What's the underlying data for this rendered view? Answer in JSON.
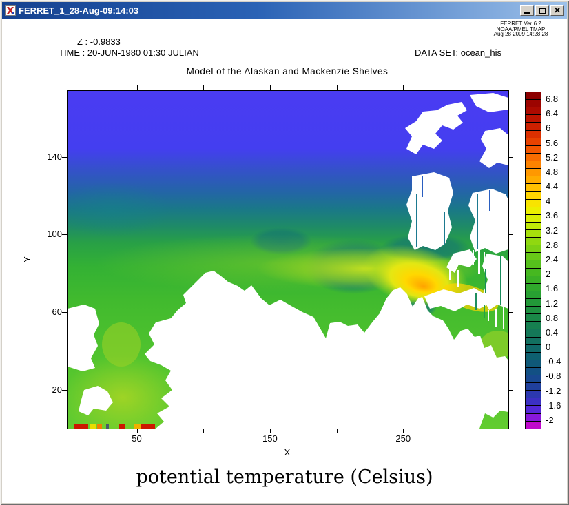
{
  "window": {
    "title": "FERRET_1_28-Aug-09:14:03"
  },
  "stamp": {
    "line1": "FERRET Ver 6.2",
    "line2": "NOAA/PMEL TMAP",
    "line3": "Aug 28 2009 14:28:28"
  },
  "header": {
    "z_label": "Z : -0.9833",
    "time_label": "TIME : 20-JUN-1980 01:30 JULIAN",
    "dataset_label": "DATA SET: ocean_his",
    "plot_title": "Model of the Alaskan and Mackenzie Shelves"
  },
  "caption": "potential temperature (Celsius)",
  "colors": {
    "titlebar_left": "#15418f",
    "titlebar_right": "#9dc1ea",
    "window_chrome": "#d4d0c8",
    "land_mask": "#ffffff",
    "ocean_cold_blue": "#4a3cf2",
    "shelf_green": "#3cb42e",
    "plume_orange": "#ffa200"
  },
  "chart_data": {
    "type": "heatmap",
    "title": "Model of the Alaskan and Mackenzie Shelves",
    "xlabel": "X",
    "ylabel": "Y",
    "x_range": [
      -2,
      329
    ],
    "y_range": [
      0,
      174
    ],
    "x_ticks_all": [
      50,
      100,
      150,
      200,
      250,
      300
    ],
    "x_ticks_labeled": [
      50,
      150,
      250
    ],
    "y_ticks_all": [
      20,
      40,
      60,
      80,
      100,
      120,
      140,
      160
    ],
    "y_ticks_labeled": [
      20,
      60,
      100,
      140
    ],
    "grid": false,
    "legend_position": "right-colorbar",
    "field": "potential temperature (Celsius) at Z = -0.9833, 20-JUN-1980 01:30",
    "value_range": [
      -2,
      6.8
    ],
    "features": [
      "cold blue-violet Arctic water (approx -1.5 to -0.5 C) across the north",
      "teal transition band mid-basin (approx 0 to 1 C)",
      "green shelf water (approx 1.5 to 3 C) over the central and southwest shelf",
      "yellow-green warm coastal band (approx 3.5 to 4 C) along the coast",
      "yellow-orange warm plume up to about 5 C near the Mackenzie outflow",
      "white land mask: Alaskan/Canadian coast, deltas, and Arctic islands upper right",
      "hot red cells (> 6 C) along the open boundary at the lower-left plot edge"
    ],
    "colorbar": {
      "min": -2,
      "max": 6.8,
      "segment_step": 0.2,
      "labels_top_to_bottom": [
        6.8,
        6.4,
        6,
        5.6,
        5.2,
        4.8,
        4.4,
        4,
        3.6,
        3.2,
        2.8,
        2.4,
        2,
        1.6,
        1.2,
        0.8,
        0.4,
        0,
        -0.4,
        -0.8,
        -1.2,
        -1.6,
        -2
      ],
      "colors_top_to_bottom": [
        "#8c0000",
        "#9c0400",
        "#ac0a00",
        "#bc1400",
        "#cc2000",
        "#dc3000",
        "#e84200",
        "#f25600",
        "#f86c00",
        "#fc8200",
        "#ff9800",
        "#ffac00",
        "#ffc000",
        "#ffd400",
        "#f8e400",
        "#ecf000",
        "#d8ee04",
        "#c0e808",
        "#a8e00c",
        "#90d810",
        "#7cd014",
        "#68c818",
        "#56c01c",
        "#46b820",
        "#3ab026",
        "#30a82c",
        "#28a032",
        "#229838",
        "#1e9040",
        "#1a8848",
        "#168050",
        "#147858",
        "#127060",
        "#106868",
        "#0e6070",
        "#0f5878",
        "#125084",
        "#184890",
        "#20409c",
        "#2c38b0",
        "#3c30c4",
        "#5428d8",
        "#8818dc",
        "#c008cc"
      ]
    }
  }
}
